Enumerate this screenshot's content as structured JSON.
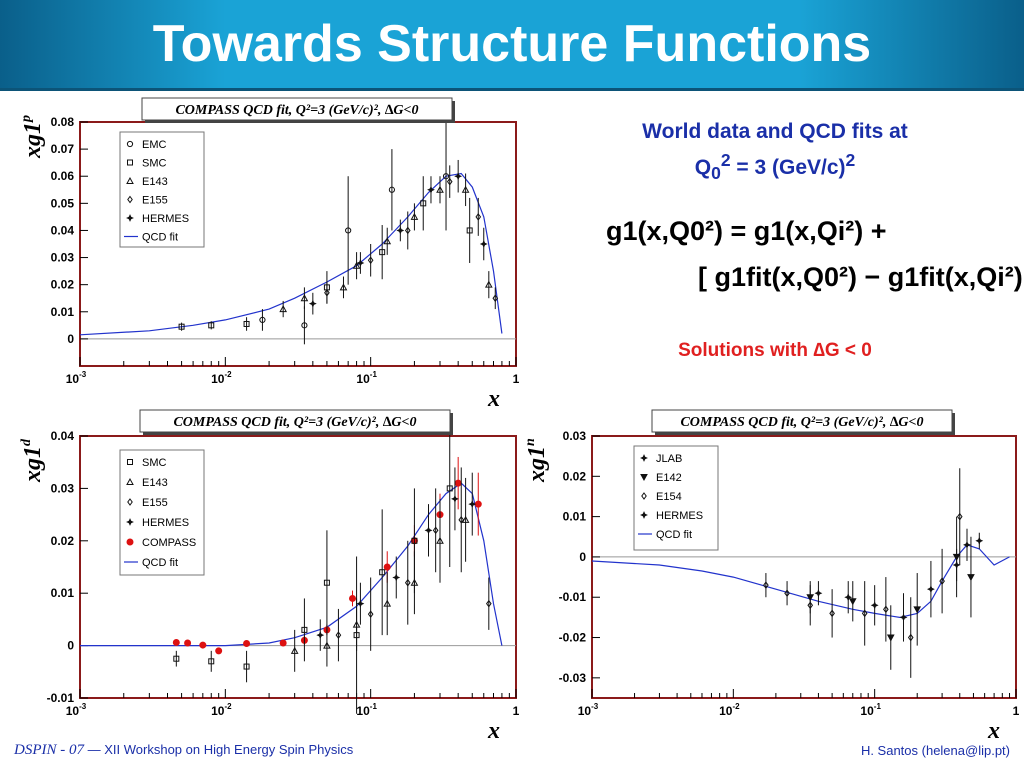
{
  "slide": {
    "title": "Towards Structure Functions",
    "side_title_line1": "World data and QCD fits at",
    "side_title_q": "Q",
    "side_title_sub": "0",
    "side_title_sup1": "2",
    "side_title_mid": " = 3 (GeV/c)",
    "side_title_sup2": "2",
    "formula_line1": "g1(x,Q0²) = g1(x,Qi²) +",
    "formula_line2": "[ g1fit(x,Q0²) − g1fit(x,Qi²) ]",
    "solutions_prefix": "Solutions with ",
    "solutions_delta": "∆",
    "solutions_suffix": "G < 0",
    "footer_conf": "DSPIN - 07",
    "footer_dash": " — ",
    "footer_workshop": "XII Workshop on High Energy Spin Physics",
    "footer_author": "H. Santos  (helena@lip.pt)"
  },
  "colors": {
    "header": "#1aa3d6",
    "frame": "#8b1a1a",
    "fit": "#2233cc",
    "compass": "#dd1111",
    "blue_text": "#1a2fa8",
    "red_text": "#e02020"
  },
  "chart_data": [
    {
      "type": "scatter",
      "title": "COMPASS QCD fit, Q²=3 (GeV/c)², ∆G<0",
      "xlabel": "x",
      "ylabel": "xg1p",
      "xlog": true,
      "xlim": [
        0.001,
        1
      ],
      "ylim": [
        -0.01,
        0.08
      ],
      "yticks": [
        0,
        0.01,
        0.02,
        0.03,
        0.04,
        0.05,
        0.06,
        0.07,
        0.08
      ],
      "ytick_labels": [
        "0",
        "0.01",
        "0.02",
        "0.03",
        "0.04",
        "0.05",
        "0.06",
        "0.07",
        "0.08"
      ],
      "xticks": [
        0.001,
        0.01,
        0.1,
        1
      ],
      "xtick_labels": [
        [
          "10",
          "-3"
        ],
        [
          "10",
          "-2"
        ],
        [
          "10",
          "-1"
        ],
        [
          "1",
          ""
        ]
      ],
      "legend_position": "top-left",
      "legend": [
        {
          "name": "EMC",
          "marker": "circle"
        },
        {
          "name": "SMC",
          "marker": "square"
        },
        {
          "name": "E143",
          "marker": "triangle"
        },
        {
          "name": "E155",
          "marker": "diamond"
        },
        {
          "name": "HERMES",
          "marker": "star"
        },
        {
          "name": "QCD fit",
          "marker": "line"
        }
      ],
      "fit": {
        "x": [
          0.001,
          0.003,
          0.006,
          0.01,
          0.02,
          0.03,
          0.05,
          0.08,
          0.12,
          0.18,
          0.25,
          0.33,
          0.42,
          0.5,
          0.6,
          0.7,
          0.8
        ],
        "y": [
          0.0015,
          0.003,
          0.005,
          0.007,
          0.011,
          0.015,
          0.021,
          0.027,
          0.035,
          0.045,
          0.054,
          0.06,
          0.061,
          0.056,
          0.045,
          0.025,
          0.002
        ]
      },
      "points": [
        {
          "series": "SMC",
          "x": 0.005,
          "y": 0.0045,
          "err": 0.0015
        },
        {
          "series": "SMC",
          "x": 0.008,
          "y": 0.005,
          "err": 0.0015
        },
        {
          "series": "SMC",
          "x": 0.014,
          "y": 0.0055,
          "err": 0.0025
        },
        {
          "series": "EMC",
          "x": 0.018,
          "y": 0.007,
          "err": 0.004
        },
        {
          "series": "E143",
          "x": 0.025,
          "y": 0.011,
          "err": 0.003
        },
        {
          "series": "EMC",
          "x": 0.035,
          "y": 0.005,
          "err": 0.007
        },
        {
          "series": "E143",
          "x": 0.035,
          "y": 0.015,
          "err": 0.004
        },
        {
          "series": "HERMES",
          "x": 0.04,
          "y": 0.013,
          "err": 0.004
        },
        {
          "series": "E155",
          "x": 0.05,
          "y": 0.017,
          "err": 0.004
        },
        {
          "series": "SMC",
          "x": 0.05,
          "y": 0.019,
          "err": 0.006
        },
        {
          "series": "E143",
          "x": 0.065,
          "y": 0.019,
          "err": 0.004
        },
        {
          "series": "EMC",
          "x": 0.07,
          "y": 0.04,
          "err": 0.02
        },
        {
          "series": "E143",
          "x": 0.08,
          "y": 0.027,
          "err": 0.005
        },
        {
          "series": "HERMES",
          "x": 0.085,
          "y": 0.028,
          "err": 0.004
        },
        {
          "series": "E155",
          "x": 0.1,
          "y": 0.029,
          "err": 0.006
        },
        {
          "series": "SMC",
          "x": 0.12,
          "y": 0.032,
          "err": 0.01
        },
        {
          "series": "E143",
          "x": 0.13,
          "y": 0.036,
          "err": 0.005
        },
        {
          "series": "EMC",
          "x": 0.14,
          "y": 0.055,
          "err": 0.015
        },
        {
          "series": "HERMES",
          "x": 0.16,
          "y": 0.04,
          "err": 0.004
        },
        {
          "series": "E155",
          "x": 0.18,
          "y": 0.04,
          "err": 0.007
        },
        {
          "series": "E143",
          "x": 0.2,
          "y": 0.045,
          "err": 0.005
        },
        {
          "series": "SMC",
          "x": 0.23,
          "y": 0.05,
          "err": 0.01
        },
        {
          "series": "HERMES",
          "x": 0.26,
          "y": 0.055,
          "err": 0.005
        },
        {
          "series": "E143",
          "x": 0.3,
          "y": 0.055,
          "err": 0.005
        },
        {
          "series": "EMC",
          "x": 0.33,
          "y": 0.06,
          "err": 0.02
        },
        {
          "series": "E155",
          "x": 0.35,
          "y": 0.058,
          "err": 0.006
        },
        {
          "series": "HERMES",
          "x": 0.4,
          "y": 0.06,
          "err": 0.006
        },
        {
          "series": "E143",
          "x": 0.45,
          "y": 0.055,
          "err": 0.006
        },
        {
          "series": "SMC",
          "x": 0.48,
          "y": 0.04,
          "err": 0.012
        },
        {
          "series": "E155",
          "x": 0.55,
          "y": 0.045,
          "err": 0.007
        },
        {
          "series": "HERMES",
          "x": 0.6,
          "y": 0.035,
          "err": 0.006
        },
        {
          "series": "E143",
          "x": 0.65,
          "y": 0.02,
          "err": 0.005
        },
        {
          "series": "E155",
          "x": 0.72,
          "y": 0.015,
          "err": 0.004
        }
      ]
    },
    {
      "type": "scatter",
      "title": "COMPASS QCD fit, Q²=3 (GeV/c)², ∆G<0",
      "xlabel": "x",
      "ylabel": "xg1d",
      "xlog": true,
      "xlim": [
        0.001,
        1
      ],
      "ylim": [
        -0.01,
        0.04
      ],
      "yticks": [
        -0.01,
        0,
        0.01,
        0.02,
        0.03,
        0.04
      ],
      "ytick_labels": [
        "-0.01",
        "0",
        "0.01",
        "0.02",
        "0.03",
        "0.04"
      ],
      "xticks": [
        0.001,
        0.01,
        0.1,
        1
      ],
      "xtick_labels": [
        [
          "10",
          "-3"
        ],
        [
          "10",
          "-2"
        ],
        [
          "10",
          "-1"
        ],
        [
          "1",
          ""
        ]
      ],
      "legend_position": "top-left",
      "legend": [
        {
          "name": "SMC",
          "marker": "square"
        },
        {
          "name": "E143",
          "marker": "triangle"
        },
        {
          "name": "E155",
          "marker": "diamond"
        },
        {
          "name": "HERMES",
          "marker": "star"
        },
        {
          "name": "COMPASS",
          "marker": "dot-red"
        },
        {
          "name": "QCD fit",
          "marker": "line"
        }
      ],
      "fit": {
        "x": [
          0.001,
          0.003,
          0.006,
          0.01,
          0.02,
          0.03,
          0.05,
          0.08,
          0.12,
          0.18,
          0.25,
          0.33,
          0.42,
          0.5,
          0.6,
          0.7,
          0.8
        ],
        "y": [
          0.0,
          0.0,
          0.0,
          0.0,
          0.0005,
          0.0015,
          0.0035,
          0.0075,
          0.013,
          0.019,
          0.025,
          0.029,
          0.031,
          0.029,
          0.02,
          0.008,
          0.0
        ]
      },
      "points": [
        {
          "series": "COMPASS",
          "x": 0.0046,
          "y": 0.0006,
          "err": 0.0006
        },
        {
          "series": "COMPASS",
          "x": 0.0055,
          "y": 0.0005,
          "err": 0.0006
        },
        {
          "series": "COMPASS",
          "x": 0.007,
          "y": 0.0001,
          "err": 0.0005
        },
        {
          "series": "COMPASS",
          "x": 0.009,
          "y": -0.001,
          "err": 0.0005
        },
        {
          "series": "COMPASS",
          "x": 0.014,
          "y": 0.0004,
          "err": 0.0004
        },
        {
          "series": "COMPASS",
          "x": 0.025,
          "y": 0.0005,
          "err": 0.0006
        },
        {
          "series": "COMPASS",
          "x": 0.035,
          "y": 0.001,
          "err": 0.0008
        },
        {
          "series": "COMPASS",
          "x": 0.05,
          "y": 0.003,
          "err": 0.001
        },
        {
          "series": "COMPASS",
          "x": 0.075,
          "y": 0.009,
          "err": 0.0015
        },
        {
          "series": "COMPASS",
          "x": 0.13,
          "y": 0.015,
          "err": 0.003
        },
        {
          "series": "COMPASS",
          "x": 0.2,
          "y": 0.02,
          "err": 0.003
        },
        {
          "series": "COMPASS",
          "x": 0.3,
          "y": 0.025,
          "err": 0.004
        },
        {
          "series": "COMPASS",
          "x": 0.4,
          "y": 0.031,
          "err": 0.005
        },
        {
          "series": "COMPASS",
          "x": 0.55,
          "y": 0.027,
          "err": 0.006
        },
        {
          "series": "SMC",
          "x": 0.0046,
          "y": -0.0025,
          "err": 0.0015
        },
        {
          "series": "SMC",
          "x": 0.008,
          "y": -0.003,
          "err": 0.002
        },
        {
          "series": "SMC",
          "x": 0.014,
          "y": -0.004,
          "err": 0.003
        },
        {
          "series": "SMC",
          "x": 0.035,
          "y": 0.003,
          "err": 0.006
        },
        {
          "series": "SMC",
          "x": 0.05,
          "y": 0.012,
          "err": 0.01
        },
        {
          "series": "SMC",
          "x": 0.08,
          "y": 0.002,
          "err": 0.015
        },
        {
          "series": "SMC",
          "x": 0.12,
          "y": 0.014,
          "err": 0.012
        },
        {
          "series": "SMC",
          "x": 0.2,
          "y": 0.02,
          "err": 0.01
        },
        {
          "series": "SMC",
          "x": 0.35,
          "y": 0.03,
          "err": 0.015
        },
        {
          "series": "E143",
          "x": 0.03,
          "y": -0.001,
          "err": 0.004
        },
        {
          "series": "E143",
          "x": 0.05,
          "y": 0.0,
          "err": 0.004
        },
        {
          "series": "E143",
          "x": 0.08,
          "y": 0.004,
          "err": 0.005
        },
        {
          "series": "E143",
          "x": 0.13,
          "y": 0.008,
          "err": 0.006
        },
        {
          "series": "E143",
          "x": 0.2,
          "y": 0.012,
          "err": 0.006
        },
        {
          "series": "E143",
          "x": 0.3,
          "y": 0.02,
          "err": 0.008
        },
        {
          "series": "E143",
          "x": 0.45,
          "y": 0.024,
          "err": 0.008
        },
        {
          "series": "E155",
          "x": 0.06,
          "y": 0.002,
          "err": 0.005
        },
        {
          "series": "E155",
          "x": 0.1,
          "y": 0.006,
          "err": 0.007
        },
        {
          "series": "E155",
          "x": 0.18,
          "y": 0.012,
          "err": 0.008
        },
        {
          "series": "E155",
          "x": 0.28,
          "y": 0.022,
          "err": 0.008
        },
        {
          "series": "E155",
          "x": 0.42,
          "y": 0.024,
          "err": 0.01
        },
        {
          "series": "E155",
          "x": 0.65,
          "y": 0.008,
          "err": 0.005
        },
        {
          "series": "HERMES",
          "x": 0.045,
          "y": 0.002,
          "err": 0.003
        },
        {
          "series": "HERMES",
          "x": 0.085,
          "y": 0.008,
          "err": 0.004
        },
        {
          "series": "HERMES",
          "x": 0.15,
          "y": 0.013,
          "err": 0.004
        },
        {
          "series": "HERMES",
          "x": 0.25,
          "y": 0.022,
          "err": 0.005
        },
        {
          "series": "HERMES",
          "x": 0.38,
          "y": 0.028,
          "err": 0.006
        },
        {
          "series": "HERMES",
          "x": 0.5,
          "y": 0.027,
          "err": 0.006
        }
      ]
    },
    {
      "type": "scatter",
      "title": "COMPASS QCD fit, Q²=3 (GeV/c)², ∆G<0",
      "xlabel": "x",
      "ylabel": "xg1n",
      "xlog": true,
      "xlim": [
        0.001,
        1
      ],
      "ylim": [
        -0.035,
        0.03
      ],
      "yticks": [
        -0.03,
        -0.02,
        -0.01,
        0,
        0.01,
        0.02,
        0.03
      ],
      "ytick_labels": [
        "-0.03",
        "-0.02",
        "-0.01",
        "0",
        "0.01",
        "0.02",
        "0.03"
      ],
      "xticks": [
        0.001,
        0.01,
        0.1,
        1
      ],
      "xtick_labels": [
        [
          "10",
          "-3"
        ],
        [
          "10",
          "-2"
        ],
        [
          "10",
          "-1"
        ],
        [
          "1",
          ""
        ]
      ],
      "legend_position": "top-left",
      "legend": [
        {
          "name": "JLAB",
          "marker": "star"
        },
        {
          "name": "E142",
          "marker": "down-triangle"
        },
        {
          "name": "E154",
          "marker": "diamond"
        },
        {
          "name": "HERMES",
          "marker": "star"
        },
        {
          "name": "QCD fit",
          "marker": "line"
        }
      ],
      "fit": {
        "x": [
          0.001,
          0.003,
          0.006,
          0.01,
          0.02,
          0.04,
          0.07,
          0.1,
          0.15,
          0.2,
          0.25,
          0.3,
          0.38,
          0.45,
          0.55,
          0.7,
          0.9
        ],
        "y": [
          -0.001,
          -0.002,
          -0.0035,
          -0.005,
          -0.008,
          -0.011,
          -0.013,
          -0.014,
          -0.015,
          -0.014,
          -0.011,
          -0.006,
          0.0,
          0.003,
          0.002,
          -0.002,
          0.0
        ]
      },
      "points": [
        {
          "series": "E154",
          "x": 0.017,
          "y": -0.007,
          "err": 0.003
        },
        {
          "series": "E154",
          "x": 0.024,
          "y": -0.009,
          "err": 0.003
        },
        {
          "series": "E142",
          "x": 0.035,
          "y": -0.01,
          "err": 0.004
        },
        {
          "series": "E154",
          "x": 0.035,
          "y": -0.012,
          "err": 0.005
        },
        {
          "series": "HERMES",
          "x": 0.04,
          "y": -0.009,
          "err": 0.003
        },
        {
          "series": "E154",
          "x": 0.05,
          "y": -0.014,
          "err": 0.006
        },
        {
          "series": "HERMES",
          "x": 0.065,
          "y": -0.01,
          "err": 0.004
        },
        {
          "series": "E142",
          "x": 0.07,
          "y": -0.011,
          "err": 0.005
        },
        {
          "series": "E154",
          "x": 0.085,
          "y": -0.014,
          "err": 0.008
        },
        {
          "series": "HERMES",
          "x": 0.1,
          "y": -0.012,
          "err": 0.005
        },
        {
          "series": "E154",
          "x": 0.12,
          "y": -0.013,
          "err": 0.008
        },
        {
          "series": "E142",
          "x": 0.13,
          "y": -0.02,
          "err": 0.008
        },
        {
          "series": "HERMES",
          "x": 0.16,
          "y": -0.015,
          "err": 0.006
        },
        {
          "series": "E154",
          "x": 0.18,
          "y": -0.02,
          "err": 0.01
        },
        {
          "series": "E142",
          "x": 0.2,
          "y": -0.013,
          "err": 0.009
        },
        {
          "series": "HERMES",
          "x": 0.25,
          "y": -0.008,
          "err": 0.007
        },
        {
          "series": "E154",
          "x": 0.3,
          "y": -0.006,
          "err": 0.008
        },
        {
          "series": "JLAB",
          "x": 0.38,
          "y": -0.002,
          "err": 0.004
        },
        {
          "series": "E142",
          "x": 0.38,
          "y": 0.0,
          "err": 0.01
        },
        {
          "series": "E154",
          "x": 0.4,
          "y": 0.01,
          "err": 0.012
        },
        {
          "series": "JLAB",
          "x": 0.45,
          "y": 0.003,
          "err": 0.004
        },
        {
          "series": "E142",
          "x": 0.48,
          "y": -0.005,
          "err": 0.01
        },
        {
          "series": "JLAB",
          "x": 0.55,
          "y": 0.004,
          "err": 0.002
        }
      ]
    }
  ]
}
